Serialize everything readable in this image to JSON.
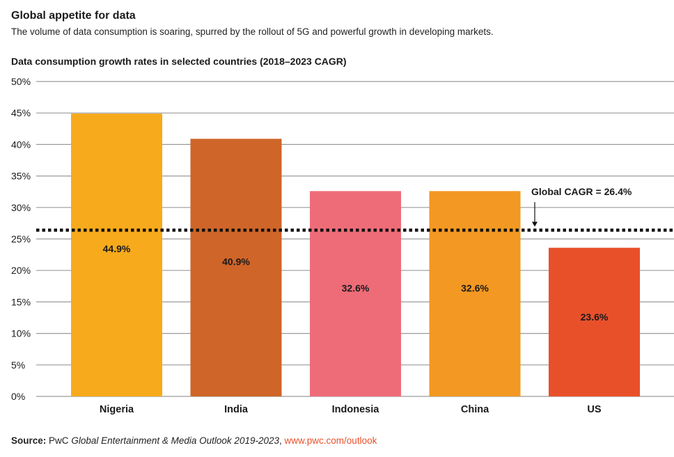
{
  "header": {
    "title": "Global appetite for data",
    "subtitle": "The volume of data consumption is soaring, spurred by the rollout of 5G and powerful growth in developing markets."
  },
  "chart_heading": "Data consumption growth rates in selected countries (2018–2023 CAGR)",
  "chart_data": {
    "type": "bar",
    "title": "Data consumption growth rates in selected countries (2018–2023 CAGR)",
    "xlabel": "",
    "ylabel": "",
    "categories": [
      "Nigeria",
      "India",
      "Indonesia",
      "China",
      "US"
    ],
    "values": [
      44.9,
      40.9,
      32.6,
      32.6,
      23.6
    ],
    "data_labels": [
      "44.9%",
      "40.9%",
      "32.6%",
      "32.6%",
      "23.6%"
    ],
    "bar_colors": [
      "#f7aa1c",
      "#cf6528",
      "#ee6c78",
      "#f39822",
      "#e8502a"
    ],
    "ylim": [
      0,
      50
    ],
    "yticks": [
      0,
      5,
      10,
      15,
      20,
      25,
      30,
      35,
      40,
      45,
      50
    ],
    "ytick_labels": [
      "0%",
      "5%",
      "10%",
      "15%",
      "20%",
      "25%",
      "30%",
      "35%",
      "40%",
      "45%",
      "50%"
    ],
    "grid": true,
    "reference_line": {
      "value": 26.4,
      "label": "Global CAGR = 26.4%",
      "style": "dotted"
    }
  },
  "source": {
    "label": "Source:",
    "publisher": "PwC",
    "publication": "Global Entertainment & Media Outlook 2019-2023",
    "separator": ",",
    "url": "www.pwc.com/outlook"
  },
  "colors": {
    "grid": "#9a9a9a",
    "text": "#1a1a1a",
    "reference_line": "#111111",
    "link": "#e8502a"
  }
}
